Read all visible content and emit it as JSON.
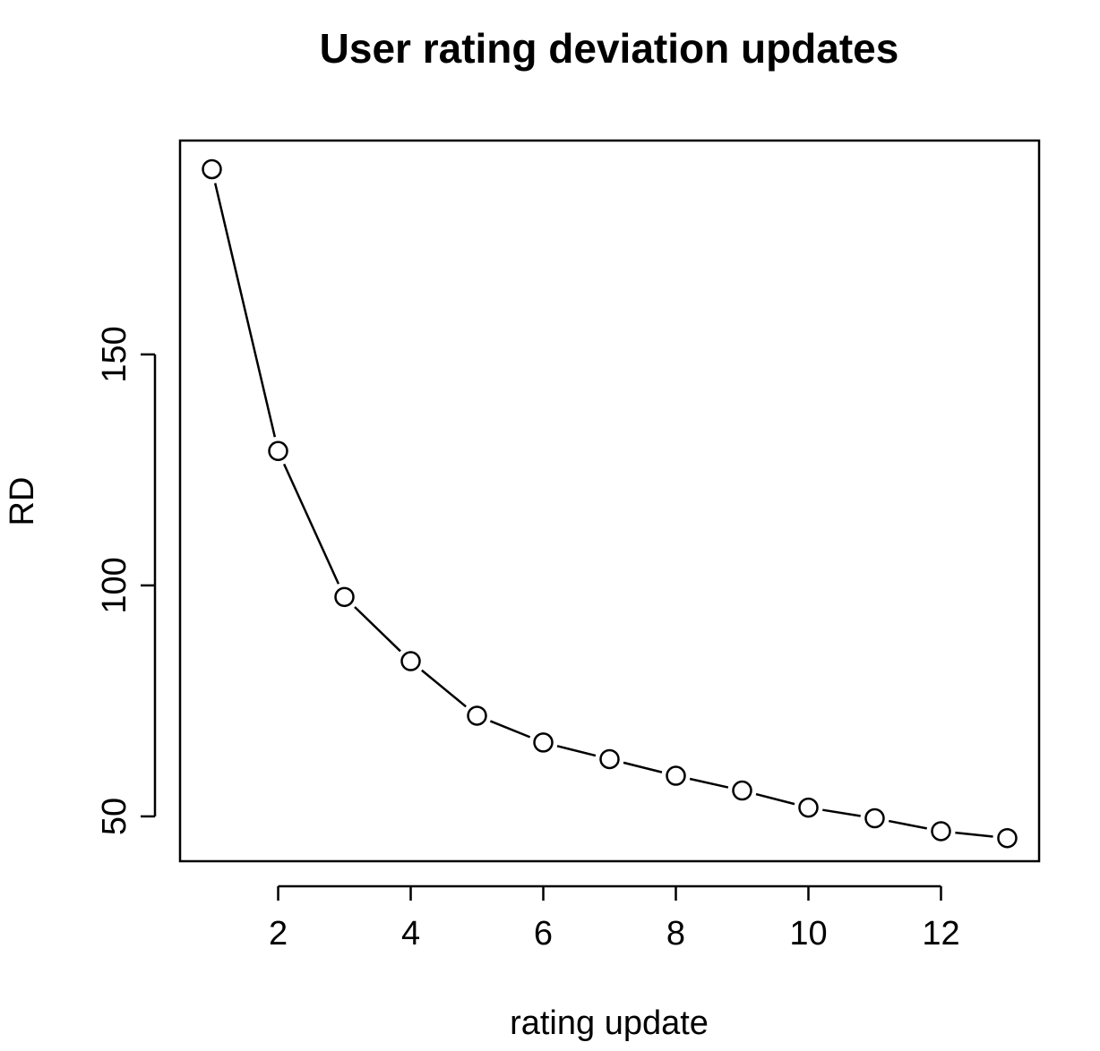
{
  "chart_data": {
    "type": "line",
    "title": "User rating deviation updates",
    "xlabel": "rating update",
    "ylabel": "RD",
    "x": [
      1,
      2,
      3,
      4,
      5,
      6,
      7,
      8,
      9,
      10,
      11,
      12,
      13
    ],
    "y": [
      190.1,
      129.1,
      97.5,
      83.6,
      71.8,
      66.0,
      62.4,
      58.8,
      55.6,
      51.9,
      49.6,
      46.8,
      45.3
    ],
    "xlim": [
      0.52,
      13.48
    ],
    "ylim": [
      40.3,
      196.3
    ],
    "xticks": [
      2,
      4,
      6,
      8,
      10,
      12
    ],
    "xtick_labels": [
      "2",
      "4",
      "6",
      "8",
      "10",
      "12"
    ],
    "yticks": [
      50,
      100,
      150
    ],
    "ytick_labels": [
      "50",
      "100",
      "150"
    ],
    "marker": "open-circle",
    "line_style": "solid-gapped-at-markers",
    "grid": false,
    "colors": {
      "line": "#000000",
      "marker_stroke": "#000000",
      "marker_fill": "#ffffff",
      "background": "#ffffff"
    }
  }
}
